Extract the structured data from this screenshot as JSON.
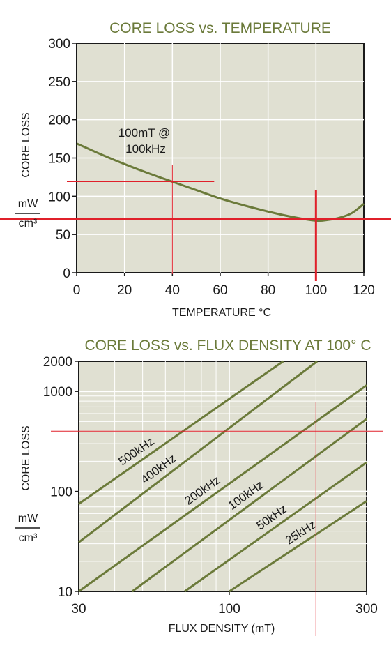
{
  "colors": {
    "plot_bg": "#e0e0d2",
    "curve": "#6b7a3a",
    "title": "#6b7a3a",
    "marker": "#e0202a",
    "grid": "#ffffff"
  },
  "chart_data": [
    {
      "type": "line",
      "title": "CORE LOSS vs. TEMPERATURE",
      "xlabel": "TEMPERATURE °C",
      "ylabel": "CORE LOSS",
      "yunit_num": "mW",
      "yunit_den": "cm³",
      "xlim": [
        0,
        120
      ],
      "ylim": [
        0,
        300
      ],
      "xticks": [
        "0",
        "20",
        "40",
        "60",
        "80",
        "100",
        "120"
      ],
      "yticks": [
        "0",
        "50",
        "100",
        "150",
        "200",
        "250",
        "300"
      ],
      "grid": true,
      "annotation": {
        "lines": [
          "100mT @",
          "100kHz"
        ]
      },
      "series": [
        {
          "name": "100mT @ 100kHz",
          "x": [
            0,
            10,
            20,
            30,
            40,
            50,
            60,
            70,
            80,
            90,
            100,
            105,
            110,
            115,
            120
          ],
          "y": [
            169,
            155,
            142,
            130,
            119,
            108,
            97,
            88,
            80,
            73,
            68,
            69,
            72,
            78,
            90
          ]
        }
      ],
      "markers": {
        "thin": {
          "x": 40,
          "y": 119
        },
        "thick": {
          "x": 100,
          "y": 70
        }
      }
    },
    {
      "type": "line",
      "title": "CORE LOSS vs. FLUX DENSITY AT 100° C",
      "xlabel": "FLUX DENSITY (mT)",
      "ylabel": "CORE LOSS",
      "yunit_num": "mW",
      "yunit_den": "cm³",
      "xscale": "log",
      "yscale": "log",
      "xlim": [
        30,
        300
      ],
      "ylim": [
        10,
        2000
      ],
      "xticks": [
        "30",
        "100",
        "300"
      ],
      "yticks": [
        "10",
        "100",
        "1000",
        "2000"
      ],
      "grid": true,
      "series": [
        {
          "name": "500kHz",
          "x": [
            30,
            154
          ],
          "y": [
            75,
            2000
          ]
        },
        {
          "name": "400kHz",
          "x": [
            30,
            202
          ],
          "y": [
            31,
            2000
          ]
        },
        {
          "name": "200kHz",
          "x": [
            30,
            300
          ],
          "y": [
            10,
            1150
          ]
        },
        {
          "name": "100kHz",
          "x": [
            46,
            300
          ],
          "y": [
            10,
            530
          ]
        },
        {
          "name": "50kHz",
          "x": [
            70,
            300
          ],
          "y": [
            10,
            195
          ]
        },
        {
          "name": "25kHz",
          "x": [
            100,
            300
          ],
          "y": [
            10,
            80
          ]
        }
      ],
      "markers": {
        "x": 200,
        "y": 400
      }
    }
  ]
}
